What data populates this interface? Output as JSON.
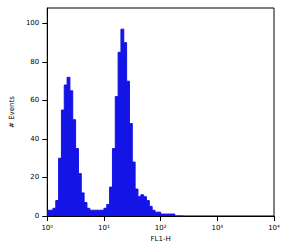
{
  "chart_data": {
    "type": "histogram",
    "x_label": "FL1-H",
    "y_label": "# Events",
    "log": "x",
    "color": "#1414e6",
    "grid": false,
    "bins": [
      1,
      1.122,
      1.259,
      1.413,
      1.585,
      1.778,
      1.995,
      2.239,
      2.512,
      2.818,
      3.162,
      3.548,
      3.981,
      4.467,
      5.012,
      5.623,
      6.31,
      7.079,
      7.943,
      8.913,
      10,
      11.22,
      12.59,
      14.13,
      15.85,
      17.78,
      19.95,
      22.39,
      25.12,
      28.18,
      31.62,
      35.48,
      39.81,
      44.67,
      50.12,
      56.23,
      63.1,
      70.79,
      79.43,
      89.13,
      100,
      112.2,
      125.9,
      141.3,
      158.5,
      177.8,
      199.5,
      223.9,
      251.2
    ],
    "values": [
      3,
      3,
      4,
      8,
      30,
      55,
      68,
      72,
      65,
      50,
      35,
      22,
      12,
      7,
      4,
      3,
      3,
      3,
      3,
      3,
      4,
      6,
      15,
      35,
      62,
      85,
      97,
      90,
      70,
      48,
      28,
      14,
      10,
      11,
      10,
      8,
      5,
      3,
      2,
      2,
      1,
      1,
      1,
      1,
      1,
      0,
      0,
      0
    ],
    "xlim": [
      1,
      10000
    ],
    "xticks": [
      {
        "value": 1,
        "label": "10⁰"
      },
      {
        "value": 10,
        "label": "10¹"
      },
      {
        "value": 100,
        "label": "10²"
      },
      {
        "value": 1000,
        "label": "10³"
      },
      {
        "value": 10000,
        "label": "10⁴"
      }
    ],
    "ylim": [
      0,
      108
    ],
    "yticks": [
      0,
      20,
      40,
      60,
      80,
      100
    ]
  }
}
